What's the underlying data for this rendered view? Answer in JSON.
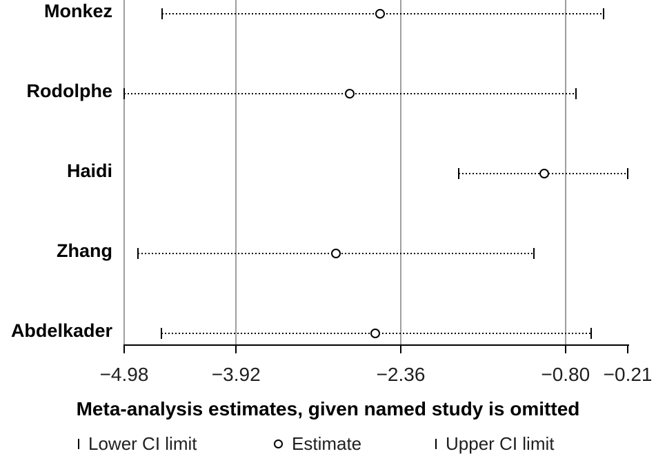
{
  "chart_data": {
    "type": "scatter",
    "subtype": "forest-leave-one-out",
    "title": "Meta-analysis estimates, given named study is omitted",
    "xlabel": "",
    "ylabel": "",
    "xlim": [
      -4.98,
      -0.204
    ],
    "grid": "vertical-only",
    "x_ticks": [
      {
        "value": -4.98,
        "label": "−4.98",
        "gridline": true
      },
      {
        "value": -3.92,
        "label": "−3.92",
        "gridline": true
      },
      {
        "value": -2.36,
        "label": "−2.36",
        "gridline": true
      },
      {
        "value": -0.8,
        "label": "−0.80",
        "gridline": true
      },
      {
        "value": -0.21,
        "label": "−0.21",
        "gridline": false
      }
    ],
    "series": [
      {
        "study": "Monkez",
        "lower": -4.62,
        "estimate": -2.55,
        "upper": -0.44
      },
      {
        "study": "Rodolphe",
        "lower": -4.98,
        "estimate": -2.84,
        "upper": -0.7
      },
      {
        "study": "Haidi",
        "lower": -1.81,
        "estimate": -1.0,
        "upper": -0.21
      },
      {
        "study": "Zhang",
        "lower": -4.85,
        "estimate": -2.97,
        "upper": -1.1
      },
      {
        "study": "Abdelkader",
        "lower": -4.63,
        "estimate": -2.6,
        "upper": -0.56
      }
    ],
    "legend": [
      {
        "marker": "lower-ci-bar",
        "label": "Lower CI limit"
      },
      {
        "marker": "estimate-circle",
        "label": "Estimate"
      },
      {
        "marker": "upper-ci-bar",
        "label": "Upper CI limit"
      }
    ],
    "legend_position": "bottom",
    "colors": {
      "gridline": "#9e9e9e",
      "axis": "#000000",
      "marker": "#000000",
      "text": "#1f1f1f",
      "background": "#ffffff"
    }
  }
}
